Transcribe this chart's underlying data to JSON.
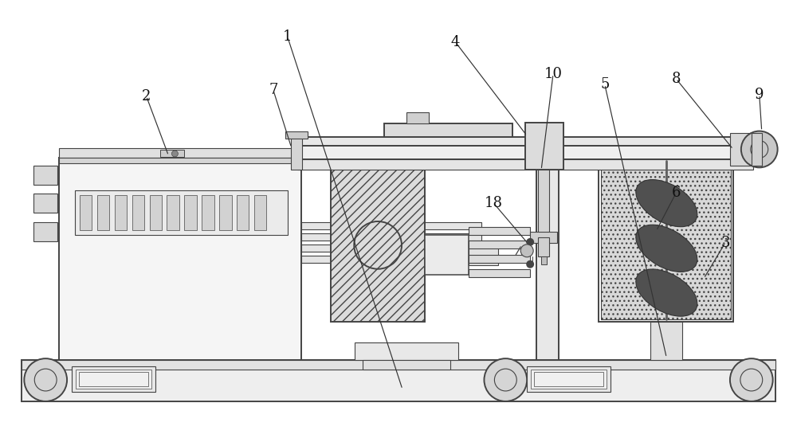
{
  "bg": "#ffffff",
  "lc": "#444444",
  "fc_light": "#f2f2f2",
  "fc_mid": "#e0e0e0",
  "fc_dark": "#c8c8c8",
  "fc_hatch": "#d8d8d8",
  "lw_main": 1.4,
  "lw_thin": 0.8,
  "lw_med": 1.1,
  "label_fs": 13
}
